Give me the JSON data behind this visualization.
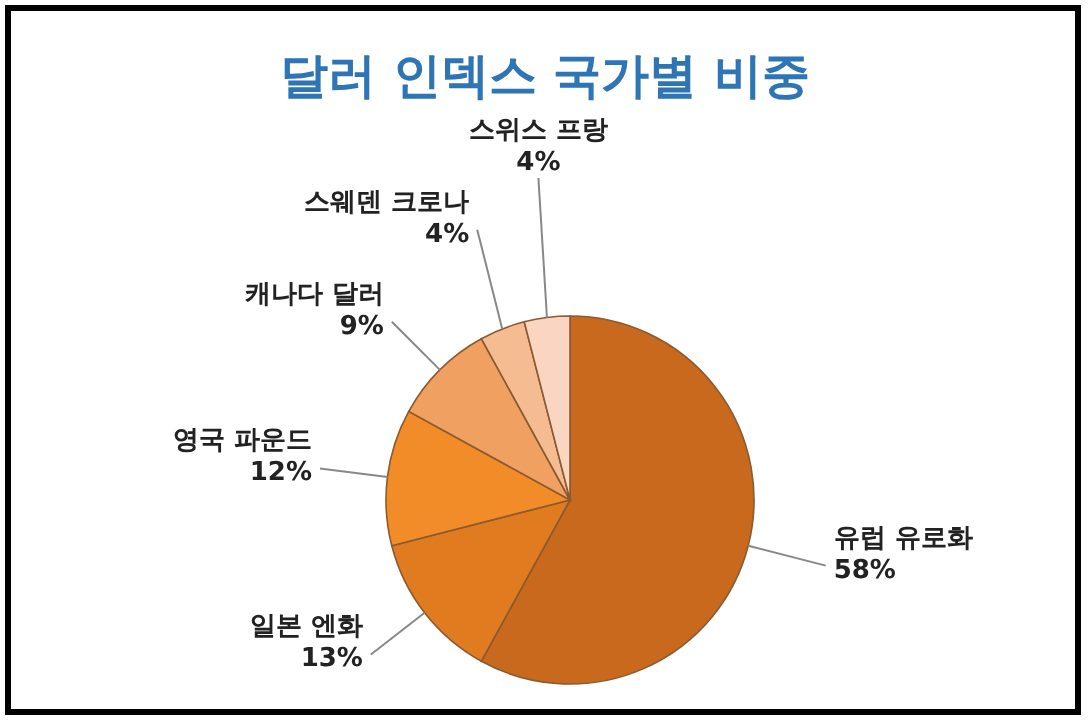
{
  "chart_data": {
    "type": "pie",
    "title": "달러 인덱스 국가별 비중",
    "categories": [
      "유럽 유로화",
      "일본 엔화",
      "영국 파운드",
      "캐나다 달러",
      "스웨덴 크로나",
      "스위스 프랑"
    ],
    "values": [
      58,
      13,
      12,
      9,
      4,
      4
    ],
    "value_labels": [
      "58%",
      "13%",
      "12%",
      "9%",
      "4%",
      "4%"
    ],
    "colors": [
      "#c8691e",
      "#e07b20",
      "#f28c28",
      "#f0a060",
      "#f5bc92",
      "#fad6c2"
    ]
  }
}
